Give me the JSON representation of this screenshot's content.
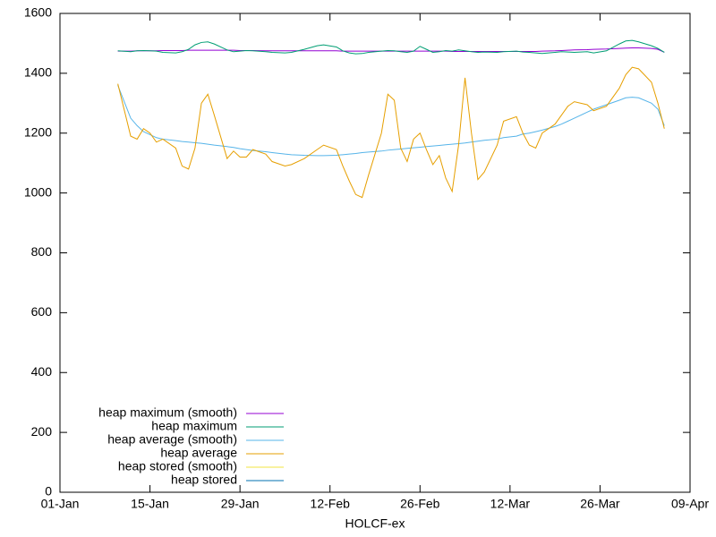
{
  "chart_data": {
    "type": "line",
    "xlabel": "HOLCF-ex",
    "x": [
      "10-Jan",
      "12-Jan",
      "13-Jan",
      "14-Jan",
      "15-Jan",
      "16-Jan",
      "17-Jan",
      "19-Jan",
      "20-Jan",
      "21-Jan",
      "22-Jan",
      "23-Jan",
      "24-Jan",
      "25-Jan",
      "27-Jan",
      "28-Jan",
      "29-Jan",
      "30-Jan",
      "31-Jan",
      "02-Feb",
      "03-Feb",
      "05-Feb",
      "06-Feb",
      "08-Feb",
      "10-Feb",
      "11-Feb",
      "13-Feb",
      "14-Feb",
      "15-Feb",
      "16-Feb",
      "17-Feb",
      "18-Feb",
      "20-Feb",
      "21-Feb",
      "22-Feb",
      "23-Feb",
      "24-Feb",
      "25-Feb",
      "26-Feb",
      "27-Feb",
      "28-Feb",
      "01-Mar",
      "02-Mar",
      "03-Mar",
      "04-Mar",
      "05-Mar",
      "06-Mar",
      "07-Mar",
      "08-Mar",
      "10-Mar",
      "11-Mar",
      "13-Mar",
      "14-Mar",
      "15-Mar",
      "16-Mar",
      "17-Mar",
      "19-Mar",
      "20-Mar",
      "21-Mar",
      "22-Mar",
      "24-Mar",
      "25-Mar",
      "27-Mar",
      "29-Mar",
      "30-Mar",
      "31-Mar",
      "01-Apr",
      "03-Apr",
      "04-Apr",
      "05-Apr"
    ],
    "series": [
      {
        "name": "heap maximum (smooth)",
        "color": "#9400d3",
        "values": [
          1474,
          1474,
          1475,
          1475,
          1475,
          1475,
          1476,
          1476,
          1476,
          1477,
          1477,
          1477,
          1477,
          1477,
          1477,
          1477,
          1476,
          1476,
          1476,
          1475,
          1475,
          1475,
          1475,
          1475,
          1475,
          1475,
          1475,
          1474,
          1474,
          1474,
          1474,
          1474,
          1474,
          1474,
          1474,
          1474,
          1474,
          1474,
          1474,
          1474,
          1474,
          1474,
          1474,
          1473,
          1473,
          1473,
          1473,
          1473,
          1473,
          1473,
          1473,
          1473,
          1473,
          1473,
          1473,
          1474,
          1475,
          1476,
          1477,
          1478,
          1479,
          1480,
          1481,
          1483,
          1484,
          1485,
          1485,
          1483,
          1480,
          1470
        ]
      },
      {
        "name": "heap maximum",
        "color": "#009e73",
        "values": [
          1475,
          1472,
          1475,
          1476,
          1475,
          1474,
          1470,
          1468,
          1472,
          1480,
          1495,
          1503,
          1505,
          1498,
          1478,
          1472,
          1474,
          1476,
          1475,
          1472,
          1470,
          1468,
          1470,
          1480,
          1492,
          1495,
          1488,
          1475,
          1468,
          1465,
          1466,
          1470,
          1474,
          1476,
          1475,
          1472,
          1470,
          1474,
          1490,
          1480,
          1470,
          1472,
          1476,
          1474,
          1478,
          1475,
          1472,
          1470,
          1471,
          1470,
          1472,
          1474,
          1471,
          1470,
          1468,
          1466,
          1470,
          1472,
          1471,
          1470,
          1472,
          1468,
          1475,
          1498,
          1508,
          1510,
          1505,
          1492,
          1483,
          1470
        ]
      },
      {
        "name": "heap average (smooth)",
        "color": "#56b4e9",
        "values": [
          1360,
          1250,
          1225,
          1205,
          1195,
          1185,
          1180,
          1175,
          1172,
          1170,
          1168,
          1166,
          1163,
          1160,
          1155,
          1152,
          1148,
          1145,
          1142,
          1138,
          1135,
          1130,
          1128,
          1126,
          1125,
          1125,
          1126,
          1128,
          1130,
          1132,
          1135,
          1137,
          1140,
          1143,
          1145,
          1147,
          1149,
          1151,
          1153,
          1155,
          1157,
          1159,
          1161,
          1163,
          1165,
          1167,
          1170,
          1173,
          1176,
          1180,
          1185,
          1190,
          1197,
          1200,
          1205,
          1210,
          1222,
          1230,
          1240,
          1250,
          1270,
          1280,
          1295,
          1310,
          1318,
          1320,
          1318,
          1300,
          1280,
          1225
        ]
      },
      {
        "name": "heap average",
        "color": "#e69f00",
        "values": [
          1365,
          1190,
          1180,
          1215,
          1200,
          1170,
          1180,
          1150,
          1090,
          1080,
          1150,
          1300,
          1330,
          1260,
          1115,
          1140,
          1120,
          1120,
          1145,
          1130,
          1105,
          1090,
          1095,
          1115,
          1145,
          1160,
          1145,
          1090,
          1040,
          995,
          985,
          1060,
          1200,
          1330,
          1310,
          1150,
          1105,
          1180,
          1200,
          1145,
          1095,
          1125,
          1050,
          1005,
          1160,
          1385,
          1200,
          1045,
          1070,
          1160,
          1240,
          1255,
          1200,
          1160,
          1150,
          1200,
          1230,
          1260,
          1290,
          1305,
          1295,
          1275,
          1290,
          1350,
          1395,
          1420,
          1415,
          1370,
          1300,
          1215
        ]
      },
      {
        "name": "heap stored (smooth)",
        "color": "#f0e442",
        "values": [
          null,
          null,
          null,
          null,
          null,
          null,
          null,
          null,
          null,
          null,
          null,
          null,
          null,
          null,
          null,
          null,
          null,
          null,
          null,
          null,
          null,
          null,
          null,
          null,
          null,
          null,
          null,
          null,
          null,
          null,
          null,
          null,
          null,
          null,
          null,
          null,
          null,
          null,
          null,
          null,
          null,
          null,
          null,
          null,
          null,
          null,
          null,
          null,
          null,
          null,
          null,
          null,
          null,
          null,
          null,
          null,
          null,
          null,
          null,
          null,
          null,
          null,
          null,
          null,
          null,
          null,
          null,
          null,
          null,
          null
        ]
      },
      {
        "name": "heap stored",
        "color": "#0072b2",
        "values": [
          null,
          null,
          null,
          null,
          null,
          null,
          null,
          null,
          null,
          null,
          null,
          null,
          null,
          null,
          null,
          null,
          null,
          null,
          null,
          null,
          null,
          null,
          null,
          null,
          null,
          null,
          null,
          null,
          null,
          null,
          null,
          null,
          null,
          null,
          null,
          null,
          null,
          null,
          null,
          null,
          null,
          null,
          null,
          null,
          null,
          null,
          null,
          null,
          null,
          null,
          null,
          null,
          null,
          null,
          null,
          null,
          null,
          null,
          null,
          null,
          null,
          null,
          null,
          null,
          null,
          null,
          null,
          null,
          null,
          null
        ]
      }
    ],
    "xlim": [
      "01-Jan",
      "09-Apr"
    ],
    "xticks": [
      "01-Jan",
      "15-Jan",
      "29-Jan",
      "12-Feb",
      "26-Feb",
      "12-Mar",
      "26-Mar",
      "09-Apr"
    ],
    "ylim": [
      0,
      1600
    ],
    "yticks": [
      0,
      200,
      400,
      600,
      800,
      1000,
      1200,
      1400,
      1600
    ],
    "legend": "bottom-left"
  }
}
